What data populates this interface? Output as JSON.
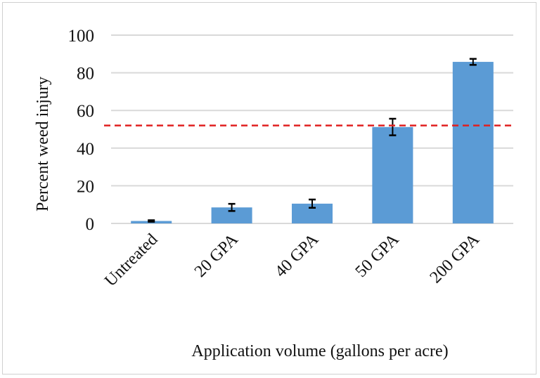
{
  "chart_data": {
    "type": "bar",
    "title": "",
    "xlabel": "Application volume (gallons per acre)",
    "ylabel": "Percent weed injury",
    "categories": [
      "Untreated",
      "20 GPA",
      "40 GPA",
      "50 GPA",
      "200 GPA"
    ],
    "values": [
      1.3,
      8.5,
      10.5,
      51.2,
      85.8
    ],
    "errors": [
      0.4,
      1.9,
      2.2,
      4.4,
      1.6
    ],
    "ylim": [
      0,
      100
    ],
    "yticks": [
      0,
      20,
      40,
      60,
      80,
      100
    ],
    "grid": true,
    "reference_line": {
      "value": 52,
      "style": "dashed",
      "color": "#e02020"
    },
    "bar_color": "#5b9bd5"
  }
}
